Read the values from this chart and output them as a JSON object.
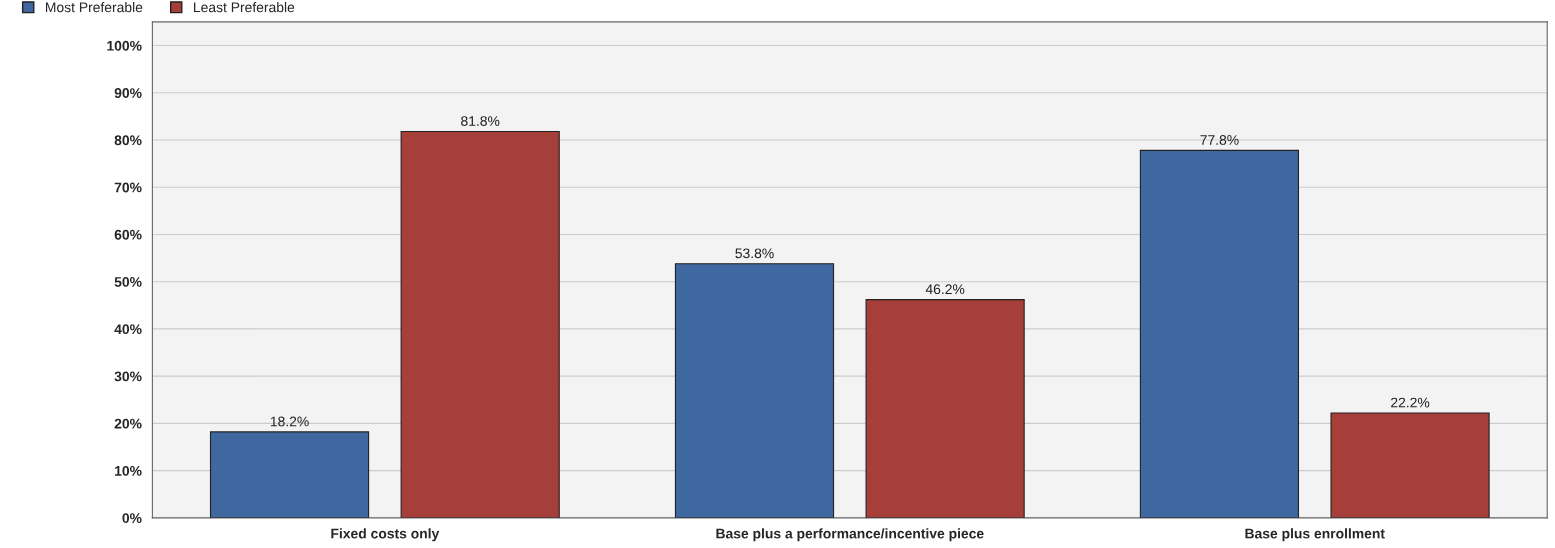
{
  "chart_data": {
    "type": "bar",
    "categories": [
      "Fixed costs only",
      "Base plus a performance/incentive piece",
      "Base plus enrollment"
    ],
    "series": [
      {
        "name": "Most Preferable",
        "color": "#3f67a0",
        "values": [
          18.2,
          53.8,
          77.8
        ],
        "value_labels": [
          "18.2%",
          "53.8%",
          "77.8%"
        ]
      },
      {
        "name": "Least Preferable",
        "color": "#a63e3a",
        "values": [
          81.8,
          46.2,
          22.2
        ],
        "value_labels": [
          "81.8%",
          "46.2%",
          "22.2%"
        ]
      }
    ],
    "ylim": [
      0,
      105
    ],
    "yticks": [
      {
        "value": 0,
        "label": "0%"
      },
      {
        "value": 10,
        "label": "10%"
      },
      {
        "value": 20,
        "label": "20%"
      },
      {
        "value": 30,
        "label": "30%"
      },
      {
        "value": 40,
        "label": "40%"
      },
      {
        "value": 50,
        "label": "50%"
      },
      {
        "value": 60,
        "label": "60%"
      },
      {
        "value": 70,
        "label": "70%"
      },
      {
        "value": 80,
        "label": "80%"
      },
      {
        "value": 90,
        "label": "90%"
      },
      {
        "value": 100,
        "label": "100%"
      }
    ],
    "grid": "y",
    "legend": "top left"
  }
}
